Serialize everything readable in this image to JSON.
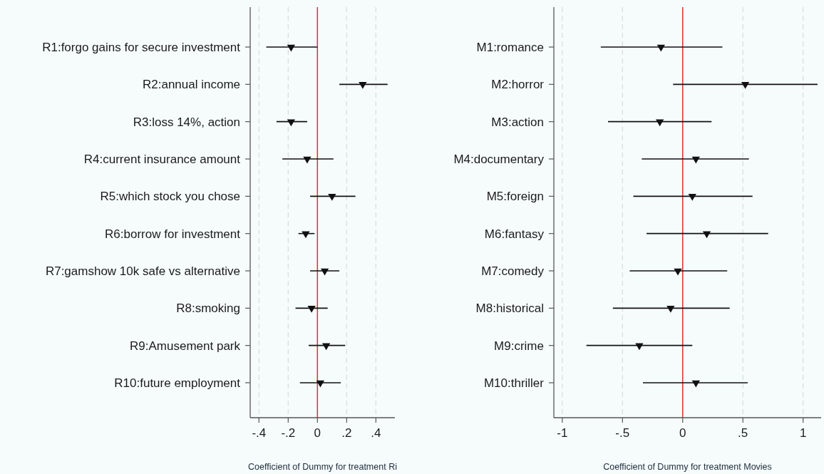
{
  "chart_data": [
    {
      "type": "scatter",
      "orientation": "horizontal",
      "categories": [
        "R1:forgo gains for secure investment",
        "R2:annual income",
        "R3:loss 14%, action",
        "R4:current insurance amount",
        "R5:which stock you chose",
        "R6:borrow for investment",
        "R7:gamshow 10k safe vs alternative",
        "R8:smoking",
        "R9:Amusement park",
        "R10:future employment"
      ],
      "values": [
        -0.18,
        0.31,
        -0.18,
        -0.07,
        0.1,
        -0.08,
        0.05,
        -0.04,
        0.06,
        0.02
      ],
      "errors": [
        [
          -0.35,
          0.0
        ],
        [
          0.15,
          0.48
        ],
        [
          -0.28,
          -0.07
        ],
        [
          -0.24,
          0.11
        ],
        [
          -0.05,
          0.26
        ],
        [
          -0.13,
          -0.02
        ],
        [
          -0.05,
          0.15
        ],
        [
          -0.15,
          0.07
        ],
        [
          -0.06,
          0.19
        ],
        [
          -0.12,
          0.16
        ]
      ],
      "color": "#111111",
      "marker": "triangle",
      "xlim": [
        -0.46,
        0.53
      ],
      "xticks": [
        {
          "value": -0.4,
          "label": "-.4"
        },
        {
          "value": -0.2,
          "label": "-.2"
        },
        0,
        {
          "value": 0.2,
          "label": ".2"
        },
        {
          "value": 0.4,
          "label": ".4"
        }
      ],
      "xlabel": "Coefficient of Dummy for treatment Ri",
      "grid": "x",
      "ref_lines": [
        {
          "axis": "x",
          "value": 0,
          "color": "#e8302a"
        }
      ]
    },
    {
      "type": "scatter",
      "orientation": "horizontal",
      "categories": [
        "M1:romance",
        "M2:horror",
        "M3:action",
        "M4:documentary",
        "M5:foreign",
        "M6:fantasy",
        "M7:comedy",
        "M8:historical",
        "M9:crime",
        "M10:thriller"
      ],
      "values": [
        -0.18,
        0.52,
        -0.19,
        0.11,
        0.08,
        0.2,
        -0.04,
        -0.1,
        -0.36,
        0.11
      ],
      "errors": [
        [
          -0.68,
          0.33
        ],
        [
          -0.08,
          1.12
        ],
        [
          -0.62,
          0.24
        ],
        [
          -0.34,
          0.55
        ],
        [
          -0.41,
          0.58
        ],
        [
          -0.3,
          0.71
        ],
        [
          -0.44,
          0.37
        ],
        [
          -0.58,
          0.39
        ],
        [
          -0.8,
          0.08
        ],
        [
          -0.33,
          0.54
        ]
      ],
      "color": "#111111",
      "marker": "triangle",
      "xlim": [
        -1.07,
        1.15
      ],
      "xticks": [
        -1,
        {
          "value": -0.5,
          "label": "-.5"
        },
        0,
        {
          "value": 0.5,
          "label": ".5"
        },
        1
      ],
      "xlabel": "Coefficient of Dummy for treatment Movies",
      "grid": "x",
      "ref_lines": [
        {
          "axis": "x",
          "value": 0,
          "color": "#e8302a"
        }
      ]
    }
  ]
}
